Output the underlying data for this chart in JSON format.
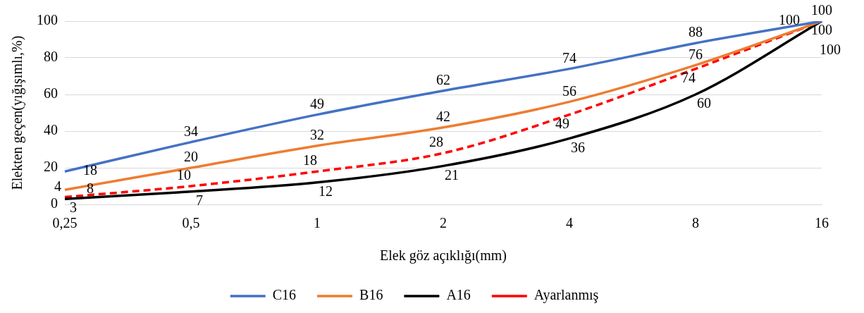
{
  "chart_data": {
    "type": "line",
    "xlabel": "Elek göz açıklığı(mm)",
    "ylabel": "Elekten geçen(yığışımlı,%)",
    "categories": [
      "0,25",
      "0,5",
      "1",
      "2",
      "4",
      "8",
      "16"
    ],
    "series": [
      {
        "name": "C16",
        "color": "#4472c4",
        "values": [
          18,
          34,
          49,
          62,
          74,
          88,
          100
        ]
      },
      {
        "name": "B16",
        "color": "#ed7d31",
        "values": [
          8,
          20,
          32,
          42,
          56,
          76,
          100
        ]
      },
      {
        "name": "A16",
        "color": "#000000",
        "values": [
          3,
          7,
          12,
          21,
          36,
          60,
          100
        ]
      },
      {
        "name": "Ayarlanmış",
        "color": "#ff0000",
        "line_style": "dashed",
        "values": [
          4,
          10,
          18,
          28,
          49,
          74,
          100
        ]
      }
    ],
    "ylim": [
      0,
      100
    ],
    "yticks": [
      0,
      20,
      40,
      60,
      80,
      100
    ],
    "grid": "y",
    "legend": "bottom",
    "marker": "none",
    "data_labels": true
  }
}
